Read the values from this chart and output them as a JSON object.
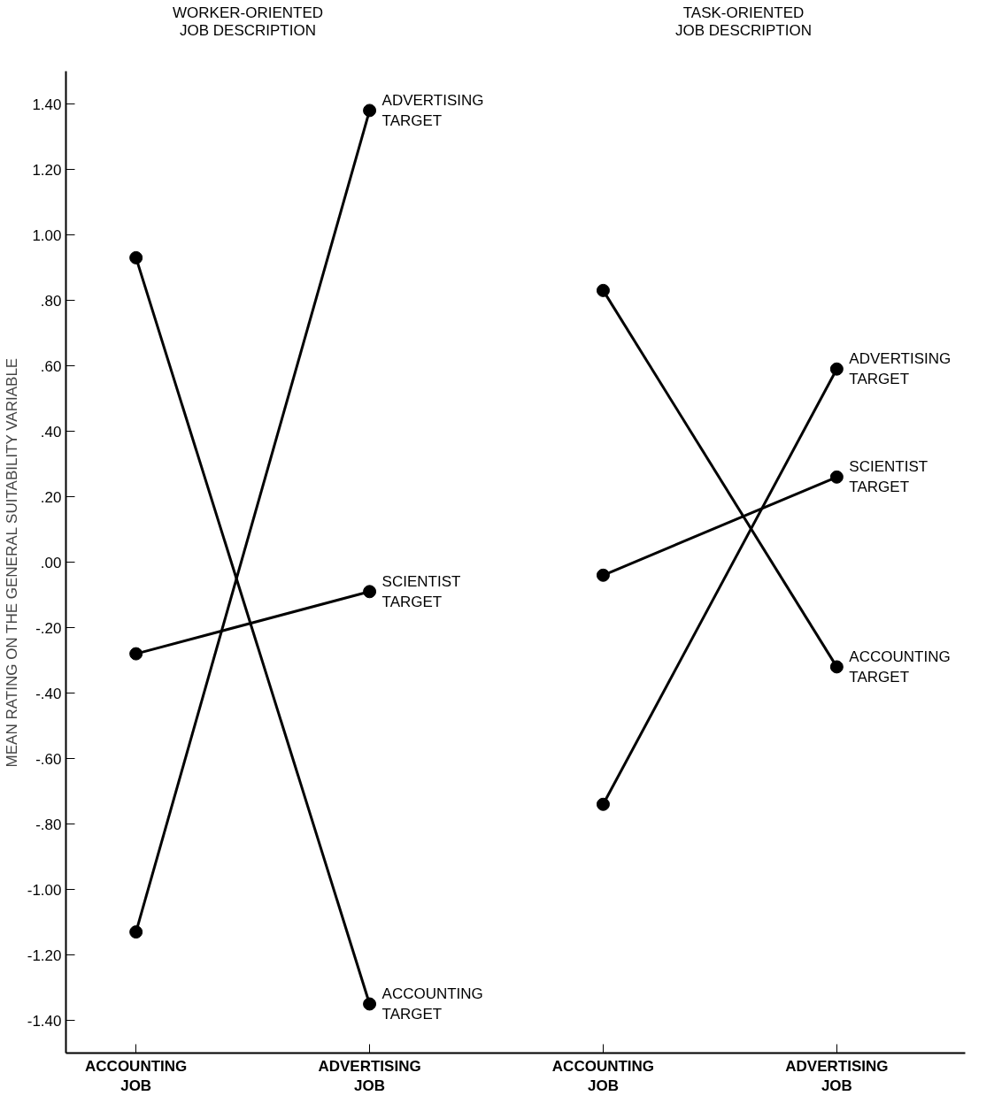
{
  "chart_data": {
    "type": "line",
    "annotations": [
      "WORKER-ORIENTED\nJOB DESCRIPTION",
      "TASK-ORIENTED\nJOB DESCRIPTION"
    ],
    "ylabel": "MEAN RATING ON THE GENERAL SUITABILITY VARIABLE",
    "categories": [
      "ACCOUNTING\nJOB",
      "ADVERTISING\nJOB",
      "ACCOUNTING\nJOB",
      "ADVERTISING\nJOB"
    ],
    "ylim": [
      -1.5,
      1.5
    ],
    "yticks": [
      {
        "value": 1.4,
        "label": "1.40"
      },
      {
        "value": 1.2,
        "label": "1.20"
      },
      {
        "value": 1.0,
        "label": "1.00"
      },
      {
        "value": 0.8,
        "label": ".80"
      },
      {
        "value": 0.6,
        "label": ".60"
      },
      {
        "value": 0.4,
        "label": ".40"
      },
      {
        "value": 0.2,
        "label": ".20"
      },
      {
        "value": 0,
        "label": ".00"
      },
      {
        "value": -0.2,
        "label": "-.20"
      },
      {
        "value": -0.4,
        "label": "-.40"
      },
      {
        "value": -0.6,
        "label": "-.60"
      },
      {
        "value": -0.8,
        "label": "-.80"
      },
      {
        "value": -1.0,
        "label": "-1.00"
      },
      {
        "value": -1.2,
        "label": "-1.20"
      },
      {
        "value": -1.4,
        "label": "-1.40"
      }
    ],
    "series": [
      {
        "name": "ADVERTISING\nTARGET",
        "color": "#000000",
        "values": [
          -1.13,
          1.38,
          null,
          null
        ]
      },
      {
        "name": "SCIENTIST\nTARGET",
        "color": "#000000",
        "values": [
          -0.28,
          -0.09,
          null,
          null
        ]
      },
      {
        "name": "ACCOUNTING\nTARGET",
        "color": "#000000",
        "values": [
          0.93,
          -1.35,
          null,
          null
        ]
      },
      {
        "name": "ADVERTISING\nTARGET",
        "color": "#000000",
        "values": [
          null,
          null,
          -0.74,
          0.59
        ]
      },
      {
        "name": "SCIENTIST\nTARGET",
        "color": "#000000",
        "values": [
          null,
          null,
          -0.04,
          0.26
        ]
      },
      {
        "name": "ACCOUNTING\nTARGET",
        "color": "#000000",
        "values": [
          null,
          null,
          0.83,
          -0.32
        ]
      }
    ],
    "marker": "circle",
    "line_style": "solid",
    "grid": false
  }
}
